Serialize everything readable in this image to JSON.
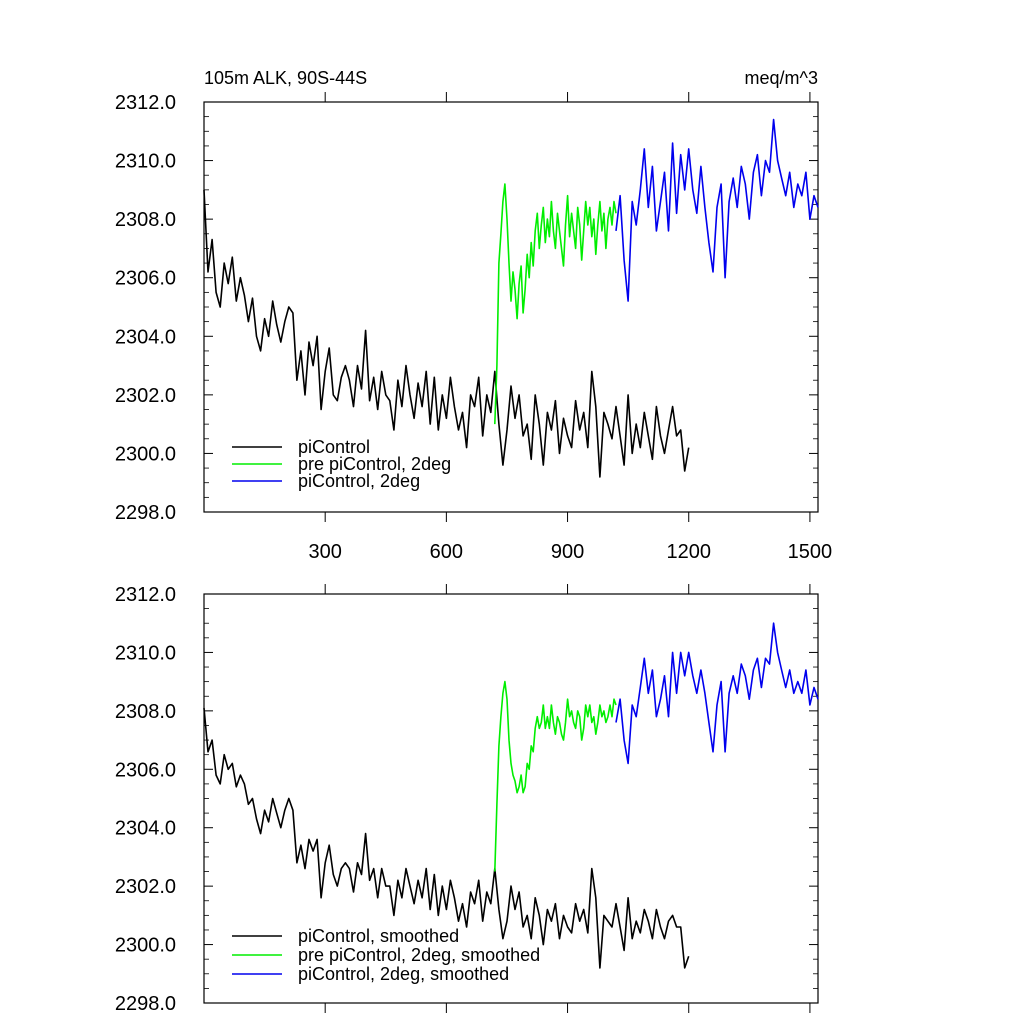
{
  "chart_data": [
    {
      "type": "line",
      "title": "105m ALK, 90S-44S",
      "units": "meq/m^3",
      "xlim": [
        0,
        1520
      ],
      "ylim": [
        2298,
        2312
      ],
      "xticks": [
        300,
        600,
        900,
        1200,
        1500
      ],
      "yticks": [
        2298.0,
        2300.0,
        2302.0,
        2304.0,
        2306.0,
        2308.0,
        2310.0,
        2312.0
      ],
      "show_x_tick_labels": true,
      "legend_position": "bottom-left",
      "series": [
        {
          "name": "piControl",
          "color": "#000000",
          "x": [
            0,
            10,
            20,
            30,
            40,
            50,
            60,
            70,
            80,
            90,
            100,
            110,
            120,
            130,
            140,
            150,
            160,
            170,
            180,
            190,
            200,
            210,
            220,
            230,
            240,
            250,
            260,
            270,
            280,
            290,
            300,
            310,
            320,
            330,
            340,
            350,
            360,
            370,
            380,
            390,
            400,
            410,
            420,
            430,
            440,
            450,
            460,
            470,
            480,
            490,
            500,
            510,
            520,
            530,
            540,
            550,
            560,
            570,
            580,
            590,
            600,
            610,
            620,
            630,
            640,
            650,
            660,
            670,
            680,
            690,
            700,
            710,
            720,
            730,
            740,
            750,
            760,
            770,
            780,
            790,
            800,
            810,
            820,
            830,
            840,
            850,
            860,
            870,
            880,
            890,
            900,
            910,
            920,
            930,
            940,
            950,
            960,
            970,
            980,
            990,
            1000,
            1010,
            1020,
            1030,
            1040,
            1050,
            1060,
            1070,
            1080,
            1090,
            1100,
            1110,
            1120,
            1130,
            1140,
            1150,
            1160,
            1170,
            1180,
            1190,
            1200
          ],
          "y": [
            2309.0,
            2306.2,
            2307.3,
            2305.5,
            2305.0,
            2306.5,
            2305.8,
            2306.7,
            2305.2,
            2306.0,
            2305.4,
            2304.5,
            2305.3,
            2304.0,
            2303.5,
            2304.6,
            2304.0,
            2305.2,
            2304.4,
            2303.8,
            2304.5,
            2305.0,
            2304.8,
            2302.5,
            2303.5,
            2302.0,
            2303.8,
            2303.0,
            2304.0,
            2301.5,
            2302.8,
            2303.6,
            2302.0,
            2301.8,
            2302.6,
            2303.0,
            2302.5,
            2301.6,
            2303.0,
            2302.2,
            2304.2,
            2301.8,
            2302.6,
            2301.5,
            2302.8,
            2302.0,
            2301.8,
            2300.8,
            2302.5,
            2301.6,
            2303.0,
            2302.0,
            2301.2,
            2302.4,
            2301.6,
            2302.8,
            2301.0,
            2302.6,
            2300.8,
            2302.0,
            2301.2,
            2302.6,
            2301.6,
            2300.8,
            2301.4,
            2300.2,
            2302.0,
            2301.6,
            2302.6,
            2300.6,
            2302.0,
            2301.4,
            2302.8,
            2301.0,
            2299.6,
            2300.8,
            2302.3,
            2301.2,
            2302.0,
            2300.6,
            2301.0,
            2299.8,
            2302.0,
            2301.0,
            2299.6,
            2301.4,
            2300.8,
            2301.8,
            2300.0,
            2301.2,
            2300.6,
            2300.2,
            2301.8,
            2300.8,
            2301.4,
            2300.2,
            2302.8,
            2301.6,
            2299.2,
            2301.4,
            2301.0,
            2300.5,
            2301.6,
            2300.6,
            2299.6,
            2302.0,
            2300.0,
            2301.0,
            2300.2,
            2301.4,
            2300.6,
            2299.8,
            2301.6,
            2300.6,
            2300.0,
            2300.8,
            2301.6,
            2300.6,
            2300.8,
            2299.4,
            2300.2
          ]
        },
        {
          "name": "pre piControl, 2deg",
          "color": "#00ee00",
          "x": [
            720,
            725,
            730,
            735,
            740,
            745,
            750,
            755,
            760,
            765,
            770,
            775,
            780,
            785,
            790,
            795,
            800,
            805,
            810,
            815,
            820,
            825,
            830,
            835,
            840,
            845,
            850,
            855,
            860,
            865,
            870,
            875,
            880,
            885,
            890,
            895,
            900,
            905,
            910,
            915,
            920,
            925,
            930,
            935,
            940,
            945,
            950,
            955,
            960,
            965,
            970,
            975,
            980,
            985,
            990,
            995,
            1000,
            1005,
            1010,
            1015,
            1020
          ],
          "y": [
            2301.0,
            2303.0,
            2306.5,
            2307.5,
            2308.6,
            2309.2,
            2308.0,
            2306.5,
            2305.2,
            2306.2,
            2305.6,
            2304.6,
            2305.8,
            2306.4,
            2304.8,
            2305.6,
            2306.8,
            2306.0,
            2307.2,
            2306.4,
            2307.6,
            2308.2,
            2307.0,
            2307.8,
            2308.4,
            2307.2,
            2308.0,
            2307.4,
            2308.6,
            2307.6,
            2307.0,
            2308.2,
            2307.6,
            2307.0,
            2306.4,
            2307.8,
            2308.8,
            2307.4,
            2308.2,
            2307.6,
            2307.0,
            2308.4,
            2307.8,
            2306.6,
            2307.6,
            2308.6,
            2307.8,
            2308.4,
            2307.4,
            2308.0,
            2306.8,
            2307.8,
            2308.6,
            2307.6,
            2308.2,
            2307.0,
            2308.0,
            2308.4,
            2307.8,
            2308.6,
            2308.2
          ]
        },
        {
          "name": "piControl, 2deg",
          "color": "#0000ee",
          "x": [
            1020,
            1030,
            1040,
            1050,
            1060,
            1070,
            1080,
            1090,
            1100,
            1110,
            1120,
            1130,
            1140,
            1150,
            1160,
            1170,
            1180,
            1190,
            1200,
            1210,
            1220,
            1230,
            1240,
            1250,
            1260,
            1270,
            1280,
            1290,
            1300,
            1310,
            1320,
            1330,
            1340,
            1350,
            1360,
            1370,
            1380,
            1390,
            1400,
            1410,
            1420,
            1430,
            1440,
            1450,
            1460,
            1470,
            1480,
            1490,
            1500,
            1510,
            1520
          ],
          "y": [
            2307.6,
            2308.8,
            2306.6,
            2305.2,
            2308.6,
            2307.8,
            2309.0,
            2310.4,
            2308.4,
            2309.8,
            2307.6,
            2308.6,
            2309.6,
            2307.6,
            2310.6,
            2308.2,
            2310.2,
            2309.0,
            2310.4,
            2309.0,
            2308.2,
            2309.8,
            2308.4,
            2307.2,
            2306.2,
            2308.4,
            2309.2,
            2306.0,
            2308.6,
            2309.4,
            2308.4,
            2309.8,
            2309.2,
            2308.0,
            2309.6,
            2310.2,
            2308.8,
            2310.0,
            2309.6,
            2311.4,
            2310.0,
            2309.4,
            2308.8,
            2309.6,
            2308.4,
            2309.2,
            2308.8,
            2309.6,
            2308.0,
            2308.8,
            2308.4
          ]
        }
      ]
    },
    {
      "type": "line",
      "title": "",
      "xlim": [
        0,
        1520
      ],
      "ylim": [
        2298,
        2312
      ],
      "xticks": [
        300,
        600,
        900,
        1200,
        1500
      ],
      "yticks": [
        2298.0,
        2300.0,
        2302.0,
        2304.0,
        2306.0,
        2308.0,
        2310.0,
        2312.0
      ],
      "show_x_tick_labels": false,
      "legend_position": "bottom-left",
      "series": [
        {
          "name": "piControl, smoothed",
          "color": "#000000",
          "x": [
            0,
            10,
            20,
            30,
            40,
            50,
            60,
            70,
            80,
            90,
            100,
            110,
            120,
            130,
            140,
            150,
            160,
            170,
            180,
            190,
            200,
            210,
            220,
            230,
            240,
            250,
            260,
            270,
            280,
            290,
            300,
            310,
            320,
            330,
            340,
            350,
            360,
            370,
            380,
            390,
            400,
            410,
            420,
            430,
            440,
            450,
            460,
            470,
            480,
            490,
            500,
            510,
            520,
            530,
            540,
            550,
            560,
            570,
            580,
            590,
            600,
            610,
            620,
            630,
            640,
            650,
            660,
            670,
            680,
            690,
            700,
            710,
            720,
            730,
            740,
            750,
            760,
            770,
            780,
            790,
            800,
            810,
            820,
            830,
            840,
            850,
            860,
            870,
            880,
            890,
            900,
            910,
            920,
            930,
            940,
            950,
            960,
            970,
            980,
            990,
            1000,
            1010,
            1020,
            1030,
            1040,
            1050,
            1060,
            1070,
            1080,
            1090,
            1100,
            1110,
            1120,
            1130,
            1140,
            1150,
            1160,
            1170,
            1180,
            1190,
            1200
          ],
          "y": [
            2308.1,
            2306.6,
            2307.0,
            2305.8,
            2305.5,
            2306.5,
            2306.0,
            2306.2,
            2305.4,
            2305.8,
            2305.5,
            2304.8,
            2305.0,
            2304.3,
            2303.8,
            2304.6,
            2304.2,
            2305.0,
            2304.5,
            2304.0,
            2304.6,
            2305.0,
            2304.6,
            2302.8,
            2303.4,
            2302.6,
            2303.6,
            2303.2,
            2303.6,
            2301.6,
            2302.8,
            2303.4,
            2302.4,
            2302.0,
            2302.6,
            2302.8,
            2302.6,
            2301.8,
            2302.8,
            2302.4,
            2303.8,
            2302.2,
            2302.6,
            2301.6,
            2302.6,
            2302.0,
            2302.0,
            2301.0,
            2302.2,
            2301.6,
            2302.6,
            2302.0,
            2301.4,
            2302.2,
            2301.6,
            2302.6,
            2301.2,
            2302.4,
            2301.0,
            2302.0,
            2301.2,
            2302.2,
            2301.6,
            2300.8,
            2301.4,
            2300.6,
            2301.8,
            2301.4,
            2302.2,
            2300.8,
            2301.8,
            2301.4,
            2302.6,
            2301.2,
            2300.2,
            2300.8,
            2302.0,
            2301.2,
            2301.8,
            2300.6,
            2301.0,
            2300.2,
            2301.6,
            2301.0,
            2300.0,
            2301.2,
            2300.8,
            2301.4,
            2300.2,
            2301.0,
            2300.6,
            2300.4,
            2301.4,
            2300.8,
            2301.2,
            2300.4,
            2302.6,
            2301.6,
            2299.2,
            2301.0,
            2300.8,
            2300.6,
            2301.4,
            2300.6,
            2299.8,
            2301.6,
            2300.2,
            2300.8,
            2300.4,
            2301.2,
            2300.8,
            2300.2,
            2301.2,
            2300.6,
            2300.2,
            2300.8,
            2301.0,
            2300.6,
            2300.6,
            2299.2,
            2299.6
          ]
        },
        {
          "name": "pre piControl, 2deg, smoothed",
          "color": "#00ee00",
          "x": [
            720,
            725,
            730,
            735,
            740,
            745,
            750,
            755,
            760,
            765,
            770,
            775,
            780,
            785,
            790,
            795,
            800,
            805,
            810,
            815,
            820,
            825,
            830,
            835,
            840,
            845,
            850,
            855,
            860,
            865,
            870,
            875,
            880,
            885,
            890,
            895,
            900,
            905,
            910,
            915,
            920,
            925,
            930,
            935,
            940,
            945,
            950,
            955,
            960,
            965,
            970,
            975,
            980,
            985,
            990,
            995,
            1000,
            1005,
            1010,
            1015,
            1020
          ],
          "y": [
            2302.5,
            2304.8,
            2306.8,
            2307.8,
            2308.6,
            2309.0,
            2308.4,
            2307.0,
            2306.2,
            2305.8,
            2305.6,
            2305.2,
            2305.4,
            2305.8,
            2305.2,
            2305.4,
            2306.2,
            2306.0,
            2306.8,
            2306.6,
            2307.4,
            2307.8,
            2307.4,
            2307.6,
            2308.2,
            2307.4,
            2307.8,
            2307.4,
            2308.2,
            2307.6,
            2307.2,
            2307.8,
            2307.6,
            2307.2,
            2307.0,
            2307.6,
            2308.4,
            2307.8,
            2308.0,
            2307.6,
            2307.4,
            2308.0,
            2307.8,
            2307.0,
            2307.4,
            2308.2,
            2307.8,
            2308.2,
            2307.6,
            2307.8,
            2307.2,
            2307.6,
            2308.2,
            2307.8,
            2308.0,
            2307.6,
            2307.8,
            2308.2,
            2307.8,
            2308.4,
            2308.2
          ]
        },
        {
          "name": "piControl, 2deg, smoothed",
          "color": "#0000ee",
          "x": [
            1020,
            1030,
            1040,
            1050,
            1060,
            1070,
            1080,
            1090,
            1100,
            1110,
            1120,
            1130,
            1140,
            1150,
            1160,
            1170,
            1180,
            1190,
            1200,
            1210,
            1220,
            1230,
            1240,
            1250,
            1260,
            1270,
            1280,
            1290,
            1300,
            1310,
            1320,
            1330,
            1340,
            1350,
            1360,
            1370,
            1380,
            1390,
            1400,
            1410,
            1420,
            1430,
            1440,
            1450,
            1460,
            1470,
            1480,
            1490,
            1500,
            1510,
            1520
          ],
          "y": [
            2307.6,
            2308.4,
            2307.0,
            2306.2,
            2308.2,
            2307.8,
            2308.8,
            2309.8,
            2308.6,
            2309.4,
            2307.8,
            2308.4,
            2309.2,
            2307.8,
            2310.0,
            2308.6,
            2310.0,
            2309.2,
            2310.0,
            2309.2,
            2308.6,
            2309.4,
            2308.6,
            2307.6,
            2306.6,
            2308.2,
            2309.0,
            2306.6,
            2308.6,
            2309.2,
            2308.6,
            2309.6,
            2309.2,
            2308.4,
            2309.4,
            2309.8,
            2308.8,
            2309.8,
            2309.6,
            2311.0,
            2310.0,
            2309.4,
            2308.8,
            2309.4,
            2308.6,
            2309.0,
            2308.6,
            2309.4,
            2308.2,
            2308.8,
            2308.4
          ]
        }
      ]
    }
  ]
}
